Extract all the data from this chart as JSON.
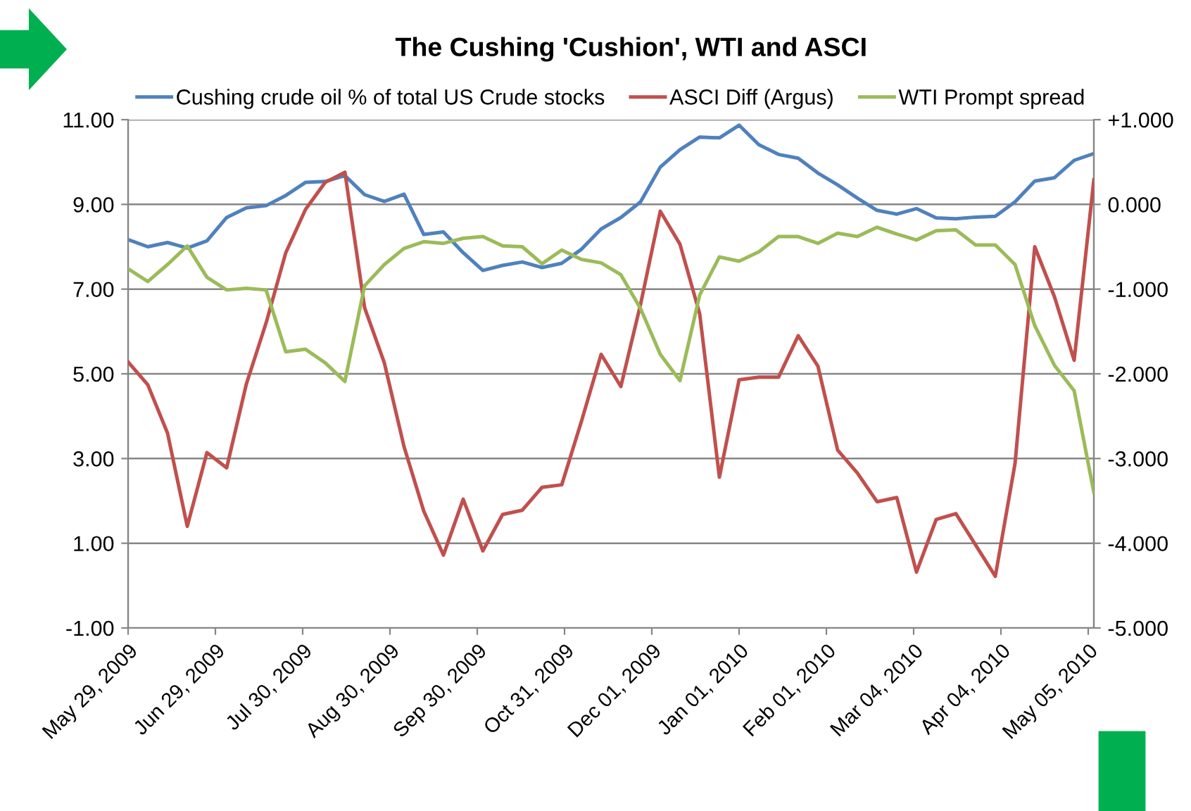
{
  "chart_data": {
    "type": "line",
    "title": "The Cushing 'Cushion', WTI and ASCI",
    "x": [
      "2009-05-29",
      "2009-06-05",
      "2009-06-12",
      "2009-06-19",
      "2009-06-26",
      "2009-07-03",
      "2009-07-10",
      "2009-07-17",
      "2009-07-24",
      "2009-07-31",
      "2009-08-07",
      "2009-08-14",
      "2009-08-21",
      "2009-08-28",
      "2009-09-04",
      "2009-09-11",
      "2009-09-18",
      "2009-09-25",
      "2009-10-02",
      "2009-10-09",
      "2009-10-16",
      "2009-10-23",
      "2009-10-30",
      "2009-11-06",
      "2009-11-13",
      "2009-11-20",
      "2009-11-27",
      "2009-12-04",
      "2009-12-11",
      "2009-12-18",
      "2009-12-25",
      "2010-01-01",
      "2010-01-08",
      "2010-01-15",
      "2010-01-22",
      "2010-01-29",
      "2010-02-05",
      "2010-02-12",
      "2010-02-19",
      "2010-02-26",
      "2010-03-05",
      "2010-03-12",
      "2010-03-19",
      "2010-03-26",
      "2010-04-02",
      "2010-04-09",
      "2010-04-16",
      "2010-04-23",
      "2010-04-30",
      "2010-05-07"
    ],
    "series": [
      {
        "name": "Cushing crude oil % of total US Crude stocks",
        "color": "#4f81bd",
        "values": [
          8.17,
          8.0,
          8.1,
          7.97,
          8.14,
          8.69,
          8.92,
          8.97,
          9.21,
          9.52,
          9.54,
          9.68,
          9.23,
          9.07,
          9.24,
          8.29,
          8.35,
          7.86,
          7.44,
          7.56,
          7.64,
          7.51,
          7.61,
          7.94,
          8.42,
          8.69,
          9.06,
          9.88,
          10.29,
          10.59,
          10.57,
          10.87,
          10.41,
          10.18,
          10.09,
          9.74,
          9.46,
          9.15,
          8.86,
          8.77,
          8.9,
          8.68,
          8.66,
          8.7,
          8.72,
          9.06,
          9.55,
          9.63,
          10.04,
          10.2
        ]
      },
      {
        "name": "ASCI Diff (Argus)",
        "color": "#c0504d",
        "axis": "y2",
        "values": [
          -1.86,
          -2.13,
          -2.7,
          -3.8,
          -2.93,
          -3.11,
          -2.12,
          -1.4,
          -0.57,
          -0.06,
          0.26,
          0.38,
          -1.22,
          -1.87,
          -2.86,
          -3.62,
          -4.14,
          -3.48,
          -4.09,
          -3.66,
          -3.61,
          -3.34,
          -3.31,
          -2.56,
          -1.77,
          -2.15,
          -1.18,
          -0.08,
          -0.47,
          -1.29,
          -3.22,
          -2.07,
          -2.04,
          -2.04,
          -1.55,
          -1.91,
          -2.9,
          -3.17,
          -3.51,
          -3.46,
          -4.34,
          -3.72,
          -3.65,
          -4.02,
          -4.39,
          -3.06,
          -0.5,
          -1.09,
          -1.84,
          0.29
        ]
      },
      {
        "name": "WTI Prompt spread",
        "color": "#9bbb59",
        "axis": "y2",
        "values": [
          -0.76,
          -0.91,
          -0.71,
          -0.49,
          -0.86,
          -1.01,
          -0.99,
          -1.01,
          -1.74,
          -1.71,
          -1.87,
          -2.09,
          -0.96,
          -0.71,
          -0.52,
          -0.44,
          -0.46,
          -0.4,
          -0.38,
          -0.49,
          -0.5,
          -0.7,
          -0.54,
          -0.65,
          -0.69,
          -0.83,
          -1.23,
          -1.77,
          -2.08,
          -1.07,
          -0.62,
          -0.67,
          -0.56,
          -0.38,
          -0.38,
          -0.46,
          -0.34,
          -0.38,
          -0.27,
          -0.35,
          -0.42,
          -0.31,
          -0.3,
          -0.48,
          -0.48,
          -0.71,
          -1.43,
          -1.9,
          -2.2,
          -3.4
        ]
      }
    ],
    "xlim": [
      "2009-05-29",
      "2010-05-07"
    ],
    "xticks": [
      {
        "value": "2009-05-29",
        "label": "May 29, 2009"
      },
      {
        "value": "2009-06-29",
        "label": "Jun 29, 2009"
      },
      {
        "value": "2009-07-30",
        "label": "Jul 30, 2009"
      },
      {
        "value": "2009-08-30",
        "label": "Aug 30, 2009"
      },
      {
        "value": "2009-09-30",
        "label": "Sep 30, 2009"
      },
      {
        "value": "2009-10-31",
        "label": "Oct 31, 2009"
      },
      {
        "value": "2009-12-01",
        "label": "Dec 01, 2009"
      },
      {
        "value": "2010-01-01",
        "label": "Jan 01, 2010"
      },
      {
        "value": "2010-02-01",
        "label": "Feb 01, 2010"
      },
      {
        "value": "2010-03-04",
        "label": "Mar 04, 2010"
      },
      {
        "value": "2010-04-04",
        "label": "Apr 04, 2010"
      },
      {
        "value": "2010-05-05",
        "label": "May 05, 2010"
      }
    ],
    "ylim": [
      -1,
      11
    ],
    "yticks": [
      {
        "value": -1,
        "label": "-1.00"
      },
      {
        "value": 1,
        "label": "1.00"
      },
      {
        "value": 3,
        "label": "3.00"
      },
      {
        "value": 5,
        "label": "5.00"
      },
      {
        "value": 7,
        "label": "7.00"
      },
      {
        "value": 9,
        "label": "9.00"
      },
      {
        "value": 11,
        "label": "11.00"
      }
    ],
    "y2lim": [
      -5,
      1
    ],
    "y2ticks": [
      {
        "value": -5,
        "label": "-5.000"
      },
      {
        "value": -4,
        "label": "-4.000"
      },
      {
        "value": -3,
        "label": "-3.000"
      },
      {
        "value": -2,
        "label": "-2.000"
      },
      {
        "value": -1,
        "label": "-1.000"
      },
      {
        "value": 0,
        "label": "0.000"
      },
      {
        "value": 1,
        "label": "+1.000"
      }
    ],
    "grid": "y",
    "legend": "top",
    "marker": "none",
    "line_style": "solid"
  }
}
